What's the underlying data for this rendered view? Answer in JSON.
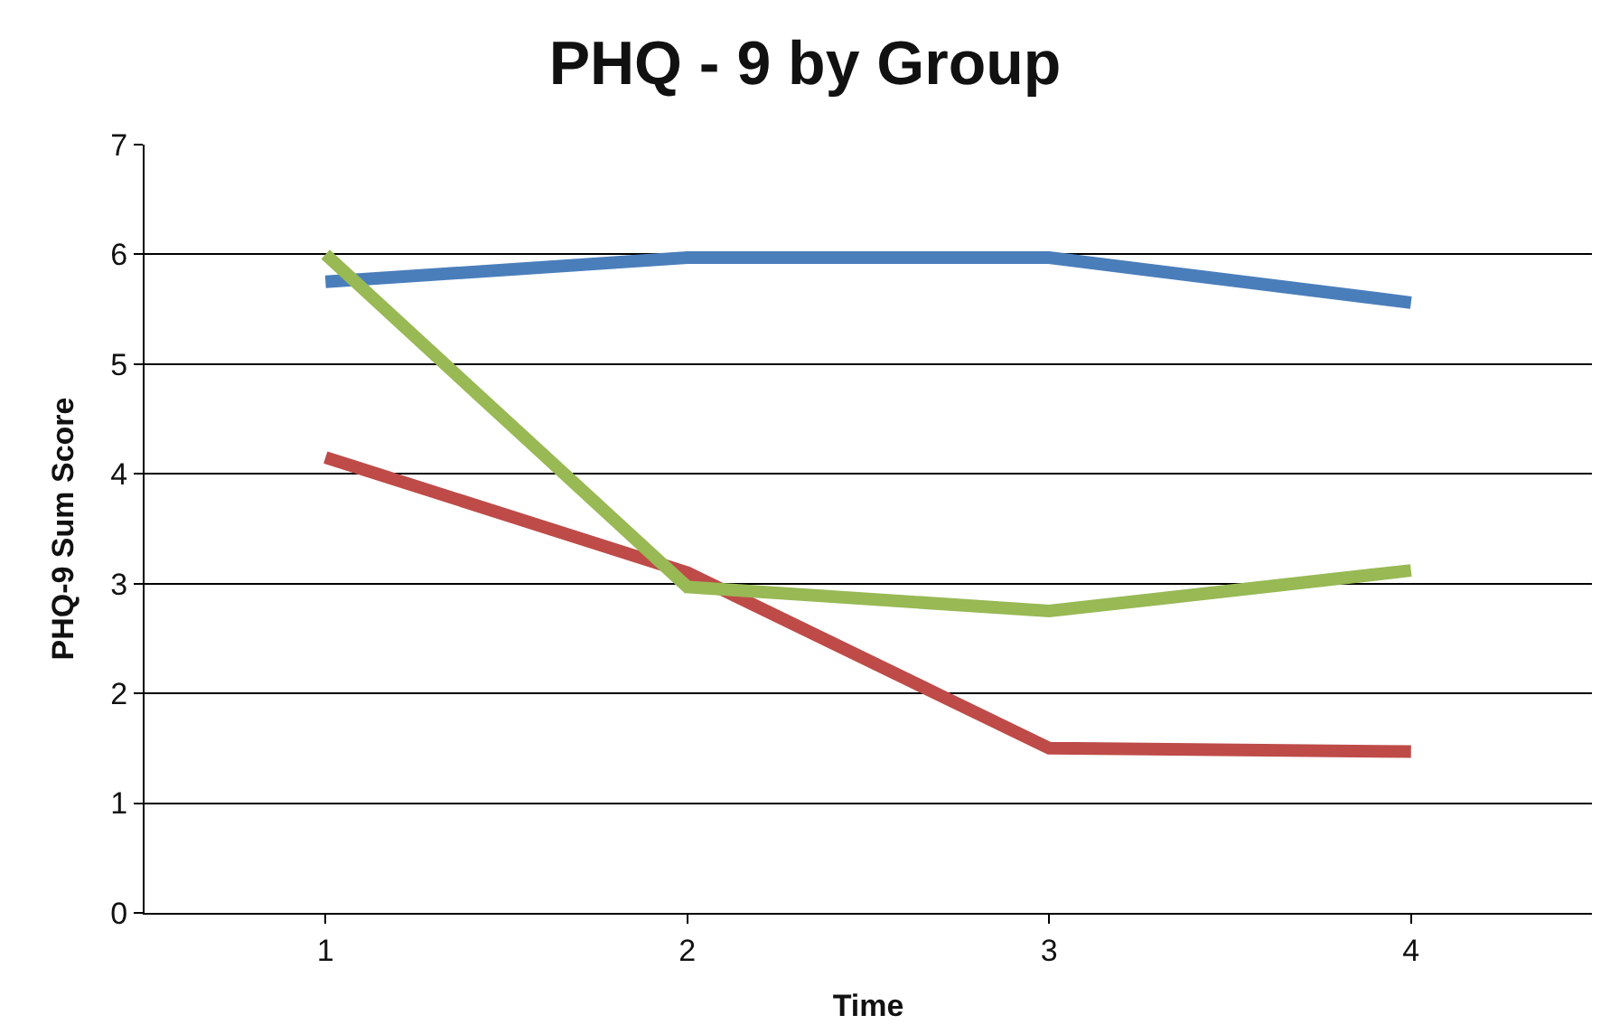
{
  "chart_data": {
    "type": "line",
    "title": "PHQ - 9 by Group",
    "xlabel": "Time",
    "ylabel": "PHQ-9 Sum Score",
    "categories": [
      "1",
      "2",
      "3",
      "4"
    ],
    "series": [
      {
        "color": "#4a7ebb",
        "values": [
          5.75,
          5.97,
          5.97,
          5.56
        ]
      },
      {
        "color": "#be4b48",
        "values": [
          4.15,
          3.1,
          1.5,
          1.47
        ]
      },
      {
        "color": "#98b954",
        "values": [
          6.0,
          2.97,
          2.75,
          3.12
        ]
      }
    ],
    "ylim": [
      0,
      7
    ],
    "yticks": [
      0,
      1,
      2,
      3,
      4,
      5,
      6,
      7
    ],
    "grid": "y",
    "marker": "none",
    "line_style": "solid"
  }
}
